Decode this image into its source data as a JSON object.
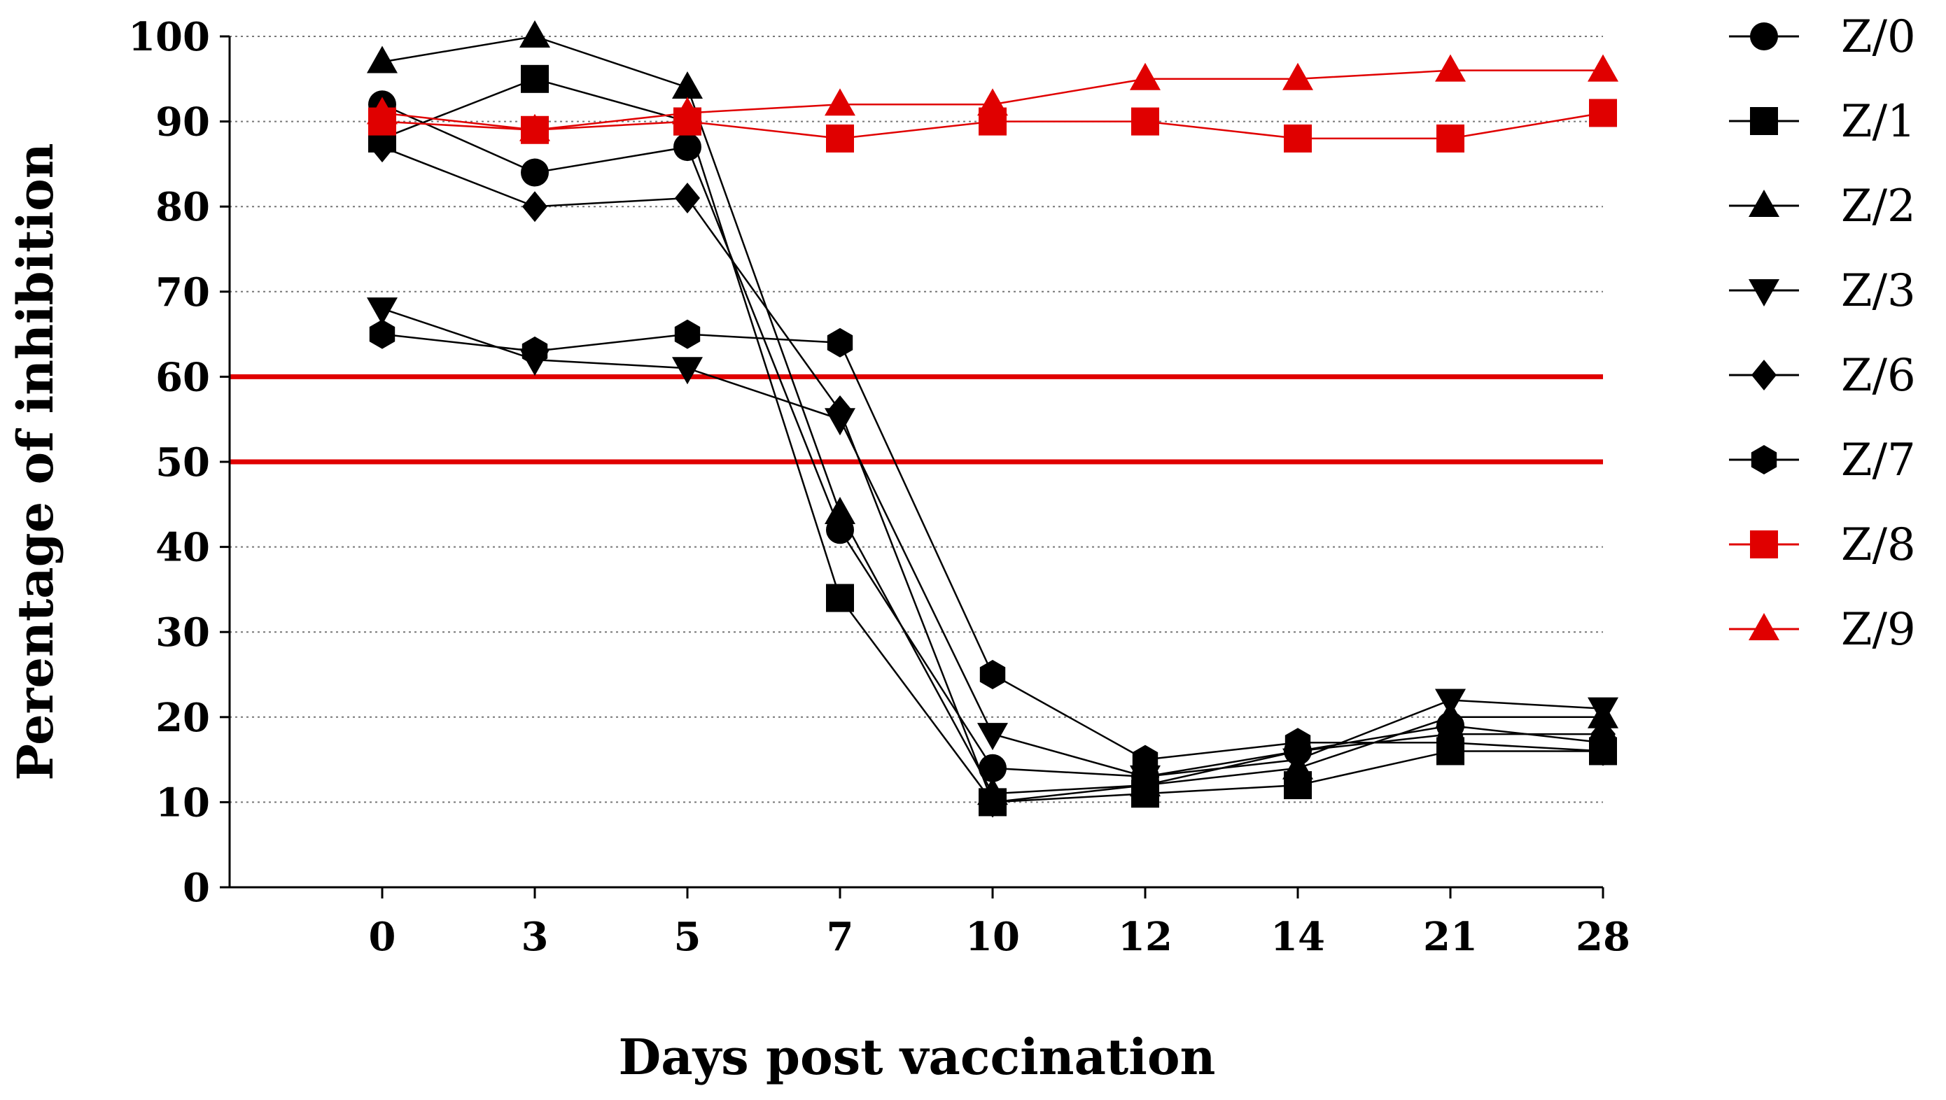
{
  "chart_data": {
    "type": "line",
    "title": "",
    "xlabel": "Days post vaccination",
    "ylabel": "Perentage of inhibition",
    "categories": [
      "0",
      "3",
      "5",
      "7",
      "10",
      "12",
      "14",
      "21",
      "28"
    ],
    "ylim": [
      0,
      100
    ],
    "yticks": [
      "0",
      "10",
      "20",
      "30",
      "40",
      "50",
      "60",
      "70",
      "80",
      "90",
      "100"
    ],
    "grid": "horizontal dotted",
    "reference_lines": [
      {
        "y": 60,
        "color": "#e00000"
      },
      {
        "y": 50,
        "color": "#e00000"
      }
    ],
    "legend_position": "right",
    "series": [
      {
        "name": "Z/0",
        "marker": "circle",
        "color": "#000000",
        "values": [
          92,
          84,
          87,
          42,
          14,
          13,
          16,
          19,
          17
        ]
      },
      {
        "name": "Z/1",
        "marker": "square",
        "color": "#000000",
        "values": [
          88,
          95,
          90,
          34,
          10,
          11,
          12,
          16,
          16
        ]
      },
      {
        "name": "Z/2",
        "marker": "triangle-up",
        "color": "#000000",
        "values": [
          97,
          100,
          94,
          44,
          11,
          12,
          14,
          20,
          20
        ]
      },
      {
        "name": "Z/3",
        "marker": "triangle-down",
        "color": "#000000",
        "values": [
          68,
          62,
          61,
          55,
          18,
          13,
          15,
          22,
          21
        ]
      },
      {
        "name": "Z/6",
        "marker": "diamond",
        "color": "#000000",
        "values": [
          87,
          80,
          81,
          56,
          10,
          12,
          16,
          18,
          18
        ]
      },
      {
        "name": "Z/7",
        "marker": "hexagon",
        "color": "#000000",
        "values": [
          65,
          63,
          65,
          64,
          25,
          15,
          17,
          17,
          16
        ]
      },
      {
        "name": "Z/8",
        "marker": "square",
        "color": "#e00000",
        "values": [
          90,
          89,
          90,
          88,
          90,
          90,
          88,
          88,
          91
        ]
      },
      {
        "name": "Z/9",
        "marker": "triangle-up",
        "color": "#e00000",
        "values": [
          91,
          89,
          91,
          92,
          92,
          95,
          95,
          96,
          96
        ]
      }
    ]
  }
}
